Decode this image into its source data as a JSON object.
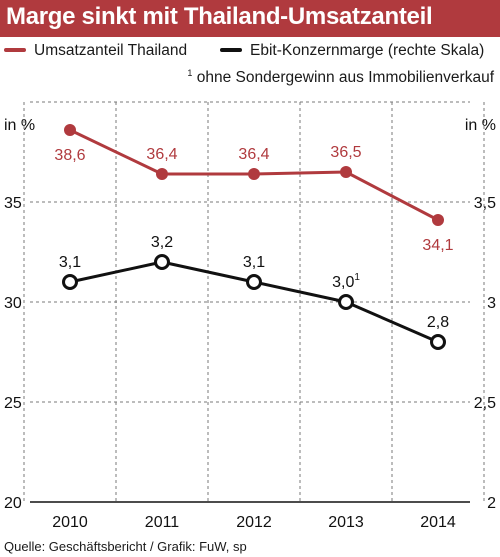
{
  "title": "Marge sinkt mit Thailand-Umsatzanteil",
  "footnote": {
    "marker": "1",
    "text": "ohne Sondergewinn aus Immobilienverkauf"
  },
  "source": "Quelle: Geschäftsbericht / Grafik: FuW, sp",
  "colors": {
    "accent": "#b03a3e",
    "series_thailand": "#b03a3e",
    "series_marge": "#111111",
    "grid": "#7a7a7a"
  },
  "chart_data": {
    "type": "line",
    "x": [
      "2010",
      "2011",
      "2012",
      "2013",
      "2014"
    ],
    "series": [
      {
        "name": "Umsatzanteil Thailand",
        "axis": "left",
        "values": [
          38.6,
          36.4,
          36.4,
          36.5,
          34.1
        ],
        "labels": [
          "38,6",
          "36,4",
          "36,4",
          "36,5",
          "34,1"
        ]
      },
      {
        "name": "Ebit-Konzernmarge (rechte Skala)",
        "axis": "right",
        "values": [
          3.1,
          3.2,
          3.1,
          3.0,
          2.8
        ],
        "labels": [
          "3,1",
          "3,2",
          "3,1",
          "3,0",
          "2,8"
        ],
        "label_notes": [
          "",
          "",
          "",
          "1",
          ""
        ]
      }
    ],
    "left_axis": {
      "label": "in %",
      "ylim": [
        20,
        40
      ],
      "ticks": [
        20,
        25,
        30,
        35
      ],
      "tick_labels": [
        "20",
        "25",
        "30",
        "35"
      ]
    },
    "right_axis": {
      "label": "in %",
      "ylim": [
        2,
        4
      ],
      "ticks": [
        2,
        2.5,
        3,
        3.5
      ],
      "tick_labels": [
        "2",
        "2,5",
        "3",
        "3,5"
      ]
    },
    "grid": "horizontal-dashed",
    "legend_placement": "top"
  }
}
